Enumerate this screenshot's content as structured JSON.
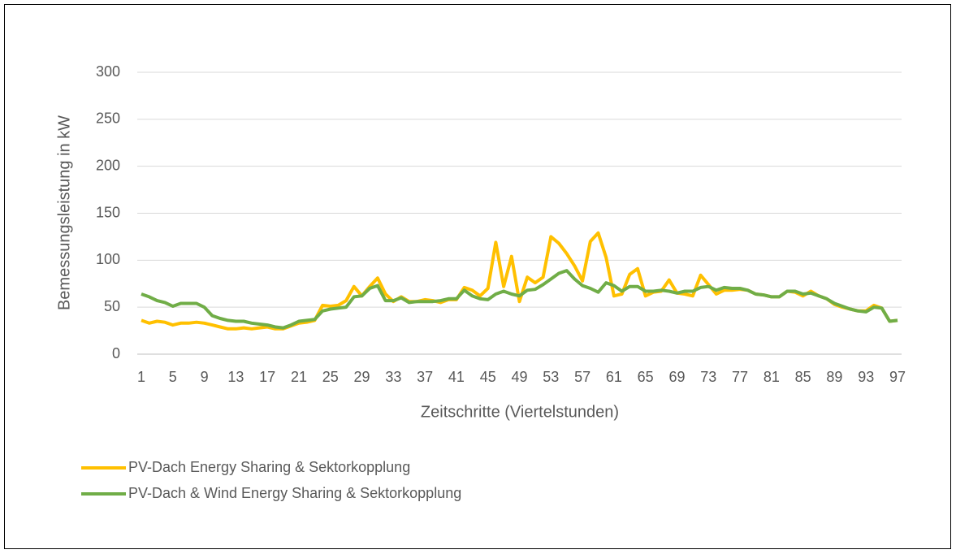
{
  "chart_data": {
    "type": "line",
    "x_label": "Zeitschritte (Viertelstunden)",
    "y_label": "Bemessungsleistung in kW",
    "x": [
      1,
      2,
      3,
      4,
      5,
      6,
      7,
      8,
      9,
      10,
      11,
      12,
      13,
      14,
      15,
      16,
      17,
      18,
      19,
      20,
      21,
      22,
      23,
      24,
      25,
      26,
      27,
      28,
      29,
      30,
      31,
      32,
      33,
      34,
      35,
      36,
      37,
      38,
      39,
      40,
      41,
      42,
      43,
      44,
      45,
      46,
      47,
      48,
      49,
      50,
      51,
      52,
      53,
      54,
      55,
      56,
      57,
      58,
      59,
      60,
      61,
      62,
      63,
      64,
      65,
      66,
      67,
      68,
      69,
      70,
      71,
      72,
      73,
      74,
      75,
      76,
      77,
      78,
      79,
      80,
      81,
      82,
      83,
      84,
      85,
      86,
      87,
      88,
      89,
      90,
      91,
      92,
      93,
      94,
      95,
      96,
      97
    ],
    "xlim": [
      1,
      97
    ],
    "xticks": [
      1,
      5,
      9,
      13,
      17,
      21,
      25,
      29,
      33,
      37,
      41,
      45,
      49,
      53,
      57,
      61,
      65,
      69,
      73,
      77,
      81,
      85,
      89,
      93,
      97
    ],
    "ylim": [
      0,
      300
    ],
    "yticks": [
      0,
      50,
      100,
      150,
      200,
      250,
      300
    ],
    "grid": true,
    "legend": "bottom-left",
    "series": [
      {
        "name": "PV-Dach Energy Sharing & Sektorkopplung",
        "color": "#ffc000",
        "values": [
          36,
          33,
          35,
          34,
          31,
          33,
          33,
          34,
          33,
          31,
          29,
          27,
          27,
          28,
          27,
          28,
          29,
          27,
          27,
          30,
          33,
          34,
          36,
          52,
          51,
          52,
          57,
          72,
          62,
          72,
          81,
          64,
          56,
          61,
          56,
          56,
          58,
          57,
          55,
          58,
          58,
          71,
          68,
          62,
          70,
          119,
          72,
          104,
          56,
          82,
          76,
          82,
          125,
          118,
          107,
          94,
          78,
          120,
          129,
          103,
          62,
          64,
          85,
          91,
          62,
          66,
          67,
          79,
          65,
          64,
          62,
          84,
          74,
          64,
          68,
          68,
          69,
          68,
          64,
          63,
          61,
          61,
          67,
          66,
          62,
          67,
          62,
          59,
          53,
          50,
          48,
          46,
          46,
          52,
          49,
          35,
          36
        ]
      },
      {
        "name": "PV-Dach & Wind Energy Sharing & Sektorkopplung",
        "color": "#70ad47",
        "values": [
          64,
          61,
          57,
          55,
          51,
          54,
          54,
          54,
          50,
          41,
          38,
          36,
          35,
          35,
          33,
          32,
          31,
          29,
          28,
          31,
          35,
          36,
          37,
          46,
          48,
          49,
          50,
          61,
          62,
          70,
          73,
          57,
          57,
          60,
          55,
          56,
          56,
          56,
          57,
          59,
          59,
          68,
          62,
          59,
          58,
          64,
          67,
          64,
          62,
          68,
          69,
          74,
          80,
          86,
          89,
          80,
          73,
          70,
          66,
          76,
          73,
          67,
          72,
          72,
          67,
          67,
          68,
          67,
          65,
          67,
          67,
          71,
          72,
          68,
          71,
          70,
          70,
          68,
          64,
          63,
          61,
          61,
          67,
          67,
          64,
          65,
          62,
          59,
          54,
          51,
          48,
          46,
          45,
          50,
          49,
          35,
          36
        ]
      }
    ]
  }
}
